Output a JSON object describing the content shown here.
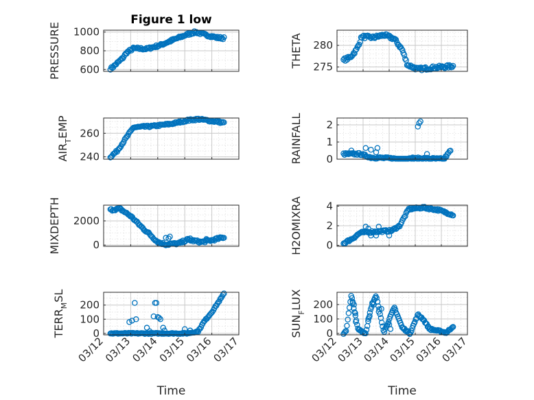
{
  "figure_title": "Figure 1 low",
  "colors": {
    "marker": "#0072BD",
    "axis": "#262626",
    "grid": "#c8c8c8",
    "minor_grid": "#e0e0e0"
  },
  "chart_data": [
    {
      "type": "scatter",
      "id": "pressure",
      "title": "Figure 1 low",
      "ylabel": "PRESSURE",
      "xlabel": "",
      "xlim": [
        0,
        5
      ],
      "ylim": [
        580,
        1020
      ],
      "yticks": [
        600,
        800,
        1000
      ],
      "minor_step": 100,
      "xticks": [
        0,
        1,
        2,
        3,
        4,
        5
      ],
      "xtick_labels": [],
      "segments": [
        [
          0.25,
          610,
          0.3,
          615
        ],
        [
          0.3,
          615,
          0.7,
          720
        ],
        [
          0.7,
          720,
          0.85,
          780
        ],
        [
          0.85,
          780,
          1.1,
          825
        ],
        [
          1.1,
          825,
          1.6,
          820
        ],
        [
          1.6,
          820,
          2.1,
          860
        ],
        [
          2.1,
          860,
          2.6,
          920
        ],
        [
          2.6,
          920,
          3.1,
          975
        ],
        [
          3.1,
          975,
          3.4,
          1000
        ],
        [
          3.4,
          1000,
          3.7,
          975
        ],
        [
          3.7,
          975,
          4.2,
          940
        ],
        [
          4.2,
          940,
          4.45,
          935
        ]
      ],
      "n_points": 120,
      "noise": 12
    },
    {
      "type": "scatter",
      "id": "theta",
      "ylabel": "THETA",
      "xlabel": "",
      "xlim": [
        0,
        5
      ],
      "ylim": [
        274,
        283.5
      ],
      "yticks": [
        275,
        280
      ],
      "minor_step": 1,
      "xticks": [
        0,
        1,
        2,
        3,
        4,
        5
      ],
      "xtick_labels": [],
      "segments": [
        [
          0.25,
          276.6,
          0.5,
          277.2
        ],
        [
          0.5,
          277.2,
          0.75,
          279
        ],
        [
          0.75,
          279,
          0.95,
          282
        ],
        [
          0.95,
          282,
          1.4,
          281.8
        ],
        [
          1.4,
          281.8,
          1.8,
          282.4
        ],
        [
          1.8,
          282.4,
          2.2,
          281.5
        ],
        [
          2.2,
          281.5,
          2.5,
          279
        ],
        [
          2.5,
          279,
          2.7,
          275.5
        ],
        [
          2.7,
          275.5,
          3.1,
          274.5
        ],
        [
          3.1,
          274.5,
          3.6,
          274.8
        ],
        [
          3.6,
          274.8,
          4.45,
          275.2
        ]
      ],
      "n_points": 120,
      "noise": 0.35
    },
    {
      "type": "scatter",
      "id": "air_temp",
      "ylabel": "AIR_TEMP",
      "ylabel_sub": "T",
      "ylabel_pre": "AIR",
      "ylabel_post": "EMP",
      "xlabel": "",
      "xlim": [
        0,
        5
      ],
      "ylim": [
        238,
        273
      ],
      "yticks": [
        240,
        260
      ],
      "minor_step": 5,
      "xticks": [
        0,
        1,
        2,
        3,
        4,
        5
      ],
      "xtick_labels": [],
      "segments": [
        [
          0.25,
          240,
          0.5,
          245
        ],
        [
          0.5,
          245,
          0.8,
          255
        ],
        [
          0.8,
          255,
          1.1,
          265
        ],
        [
          1.1,
          265,
          1.8,
          266
        ],
        [
          1.8,
          266,
          2.5,
          268
        ],
        [
          2.5,
          268,
          3.1,
          271
        ],
        [
          3.1,
          271,
          3.5,
          272
        ],
        [
          3.5,
          272,
          4.45,
          269
        ]
      ],
      "n_points": 120,
      "noise": 0.8
    },
    {
      "type": "scatter",
      "id": "rainfall",
      "ylabel": "RAINFALL",
      "xlabel": "",
      "xlim": [
        0,
        5
      ],
      "ylim": [
        0,
        2.4
      ],
      "yticks": [
        0,
        1,
        2
      ],
      "minor_step": 0.5,
      "xticks": [
        0,
        1,
        2,
        3,
        4,
        5
      ],
      "xtick_labels": [],
      "segments": [
        [
          0.25,
          0.3,
          0.9,
          0.3
        ],
        [
          0.9,
          0.3,
          1.3,
          0.1
        ],
        [
          1.3,
          0.1,
          2.6,
          0.0
        ],
        [
          2.6,
          0.0,
          3.2,
          0.05
        ],
        [
          3.2,
          0.05,
          4.1,
          0.0
        ],
        [
          4.1,
          0.0,
          4.35,
          0.5
        ]
      ],
      "n_points": 110,
      "noise": 0.06,
      "extra_points": [
        [
          0.55,
          0.5
        ],
        [
          1.1,
          0.65
        ],
        [
          1.3,
          0.55
        ],
        [
          1.5,
          0.4
        ],
        [
          1.55,
          0.65
        ],
        [
          3.1,
          1.9
        ],
        [
          3.15,
          2.1
        ],
        [
          3.2,
          2.2
        ],
        [
          3.45,
          0.3
        ],
        [
          2.9,
          0.1
        ]
      ]
    },
    {
      "type": "scatter",
      "id": "mixdepth",
      "ylabel": "MIXDEPTH",
      "xlabel": "",
      "xlim": [
        0,
        5
      ],
      "ylim": [
        -100,
        3300
      ],
      "yticks": [
        0,
        2000
      ],
      "minor_step": 500,
      "xticks": [
        0,
        1,
        2,
        3,
        4,
        5
      ],
      "xtick_labels": [],
      "segments": [
        [
          0.25,
          2900,
          0.6,
          3000
        ],
        [
          0.6,
          3000,
          1.0,
          2400
        ],
        [
          1.0,
          2400,
          1.4,
          1500
        ],
        [
          1.4,
          1500,
          1.7,
          900
        ],
        [
          1.7,
          900,
          2.0,
          250
        ],
        [
          2.0,
          250,
          2.3,
          50
        ],
        [
          2.3,
          50,
          2.8,
          150
        ],
        [
          2.8,
          150,
          3.1,
          450
        ],
        [
          3.1,
          450,
          3.6,
          250
        ],
        [
          3.6,
          250,
          4.0,
          400
        ],
        [
          4.0,
          400,
          4.45,
          650
        ]
      ],
      "n_points": 120,
      "noise": 90,
      "extra_points": [
        [
          2.3,
          600
        ],
        [
          2.4,
          550
        ],
        [
          2.45,
          700
        ],
        [
          3.2,
          550
        ],
        [
          3.8,
          500
        ]
      ]
    },
    {
      "type": "scatter",
      "id": "h2omixra",
      "ylabel": "H2OMIXRA",
      "xlabel": "",
      "xlim": [
        0,
        5
      ],
      "ylim": [
        -0.1,
        4.1
      ],
      "yticks": [
        0,
        2,
        4
      ],
      "minor_step": 0.5,
      "xticks": [
        0,
        1,
        2,
        3,
        4,
        5
      ],
      "xtick_labels": [],
      "segments": [
        [
          0.25,
          0.2,
          0.6,
          0.7
        ],
        [
          0.6,
          0.7,
          0.9,
          1.3
        ],
        [
          0.9,
          1.3,
          1.5,
          1.4
        ],
        [
          1.5,
          1.4,
          2.1,
          1.5
        ],
        [
          2.1,
          1.5,
          2.4,
          2.0
        ],
        [
          2.4,
          2.0,
          2.75,
          3.7
        ],
        [
          2.75,
          3.7,
          3.3,
          3.85
        ],
        [
          3.3,
          3.85,
          3.9,
          3.6
        ],
        [
          3.9,
          3.6,
          4.45,
          3.1
        ]
      ],
      "n_points": 120,
      "noise": 0.1,
      "extra_points": [
        [
          1.1,
          1.9
        ],
        [
          1.2,
          1.7
        ],
        [
          1.3,
          1.0
        ],
        [
          1.5,
          1.0
        ],
        [
          1.6,
          1.9
        ],
        [
          2.0,
          1.0
        ]
      ]
    },
    {
      "type": "scatter",
      "id": "terr_msl",
      "ylabel": "TERR_MSL",
      "ylabel_sub": "M",
      "ylabel_pre": "TERR",
      "ylabel_post": "SL",
      "xlabel": "Time",
      "xlim": [
        0,
        5
      ],
      "ylim": [
        -10,
        290
      ],
      "yticks": [
        0,
        100,
        200
      ],
      "minor_step": 50,
      "xticks": [
        0,
        1,
        2,
        3,
        4,
        5
      ],
      "xtick_labels": [
        "03/12",
        "03/13",
        "03/14",
        "03/15",
        "03/16",
        "03/17"
      ],
      "segments": [
        [
          0.25,
          0,
          3.1,
          0
        ],
        [
          3.1,
          0,
          3.5,
          15
        ],
        [
          3.5,
          15,
          3.7,
          80
        ],
        [
          3.7,
          80,
          4.0,
          150
        ],
        [
          4.0,
          150,
          4.45,
          280
        ]
      ],
      "n_points": 120,
      "noise": 4,
      "extra_points": [
        [
          0.95,
          80
        ],
        [
          1.05,
          90
        ],
        [
          1.15,
          215
        ],
        [
          1.2,
          100
        ],
        [
          1.6,
          40
        ],
        [
          1.7,
          15
        ],
        [
          1.85,
          120
        ],
        [
          1.9,
          215
        ],
        [
          1.95,
          215
        ],
        [
          2.0,
          115
        ],
        [
          2.05,
          110
        ],
        [
          2.1,
          100
        ],
        [
          2.2,
          40
        ],
        [
          2.25,
          20
        ],
        [
          3.0,
          30
        ],
        [
          3.2,
          20
        ]
      ]
    },
    {
      "type": "scatter",
      "id": "sun_flux",
      "ylabel": "SUN_FLUX",
      "ylabel_sub": "F",
      "ylabel_pre": "SUN",
      "ylabel_post": "LUX",
      "xlabel": "Time",
      "xlim": [
        0,
        5
      ],
      "ylim": [
        -10,
        285
      ],
      "yticks": [
        0,
        100,
        200
      ],
      "minor_step": 50,
      "xticks": [
        0,
        1,
        2,
        3,
        4,
        5
      ],
      "xtick_labels": [
        "03/12",
        "03/13",
        "03/14",
        "03/15",
        "03/16",
        "03/17"
      ],
      "segments": [
        [
          0.25,
          0,
          0.35,
          20
        ],
        [
          0.35,
          20,
          0.55,
          265
        ],
        [
          0.55,
          265,
          0.8,
          30
        ],
        [
          0.8,
          30,
          1.1,
          0
        ],
        [
          1.1,
          0,
          1.3,
          180
        ],
        [
          1.3,
          180,
          1.5,
          260
        ],
        [
          1.5,
          260,
          1.8,
          10
        ],
        [
          1.8,
          10,
          2.2,
          180
        ],
        [
          2.2,
          180,
          2.5,
          40
        ],
        [
          2.5,
          40,
          2.8,
          0
        ],
        [
          2.8,
          0,
          3.1,
          130
        ],
        [
          3.1,
          130,
          3.3,
          100
        ],
        [
          3.3,
          100,
          3.55,
          30
        ],
        [
          3.55,
          30,
          4.2,
          5
        ],
        [
          4.2,
          5,
          4.45,
          50
        ]
      ],
      "n_points": 130,
      "noise": 6,
      "extra_points": [
        [
          0.6,
          220
        ],
        [
          0.65,
          200
        ],
        [
          0.7,
          140
        ],
        [
          0.72,
          80
        ],
        [
          1.35,
          210
        ],
        [
          1.4,
          200
        ],
        [
          1.6,
          150
        ],
        [
          1.7,
          170
        ],
        [
          2.0,
          60
        ],
        [
          2.05,
          30
        ],
        [
          1.2,
          100
        ],
        [
          1.25,
          120
        ]
      ]
    }
  ]
}
